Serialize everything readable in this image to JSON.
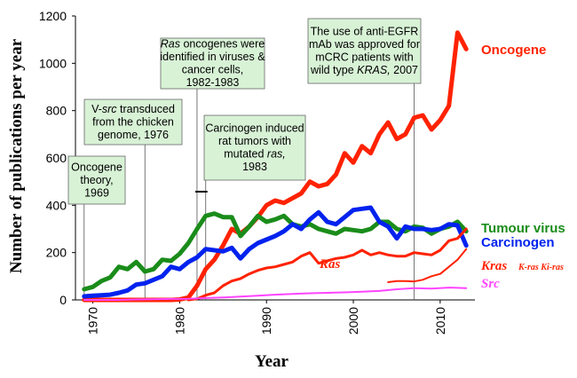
{
  "chart_data": {
    "type": "line",
    "xlabel": "Year",
    "ylabel": "Number of publications per year",
    "xlim": [
      1968,
      2014
    ],
    "ylim": [
      0,
      1200
    ],
    "x_ticks": [
      "1970",
      "1980",
      "1990",
      "2000",
      "2010"
    ],
    "y_ticks": [
      "0",
      "200",
      "400",
      "600",
      "800",
      "1000",
      "1200"
    ],
    "series": [
      {
        "name": "Oncogene",
        "label": "Oncogene",
        "color": "#ff2200",
        "x": [
          1969,
          1970,
          1971,
          1972,
          1973,
          1974,
          1975,
          1976,
          1977,
          1978,
          1979,
          1980,
          1981,
          1982,
          1983,
          1984,
          1985,
          1986,
          1987,
          1988,
          1989,
          1990,
          1991,
          1992,
          1993,
          1994,
          1995,
          1996,
          1997,
          1998,
          1999,
          2000,
          2001,
          2002,
          2003,
          2004,
          2005,
          2006,
          2007,
          2008,
          2009,
          2010,
          2011,
          2012,
          2013
        ],
        "values": [
          0,
          0,
          0,
          0,
          0,
          0,
          0,
          0,
          0,
          0,
          0,
          2,
          10,
          60,
          130,
          170,
          230,
          300,
          280,
          310,
          350,
          400,
          420,
          410,
          430,
          450,
          500,
          480,
          490,
          530,
          620,
          580,
          650,
          620,
          700,
          750,
          680,
          700,
          770,
          780,
          720,
          760,
          820,
          1130,
          1060
        ]
      },
      {
        "name": "Tumour virus",
        "label": "Tumour virus",
        "color": "#1a8c1a",
        "x": [
          1969,
          1970,
          1971,
          1972,
          1973,
          1974,
          1975,
          1976,
          1977,
          1978,
          1979,
          1980,
          1981,
          1982,
          1983,
          1984,
          1985,
          1986,
          1987,
          1988,
          1989,
          1990,
          1991,
          1992,
          1993,
          1994,
          1995,
          1996,
          1997,
          1998,
          1999,
          2000,
          2001,
          2002,
          2003,
          2004,
          2005,
          2006,
          2007,
          2008,
          2009,
          2010,
          2011,
          2012,
          2013
        ],
        "values": [
          45,
          55,
          80,
          95,
          140,
          130,
          160,
          120,
          130,
          170,
          165,
          195,
          240,
          300,
          355,
          365,
          350,
          350,
          270,
          310,
          355,
          330,
          340,
          355,
          320,
          310,
          320,
          300,
          290,
          280,
          300,
          295,
          290,
          300,
          330,
          330,
          300,
          290,
          310,
          305,
          280,
          300,
          310,
          330,
          290
        ]
      },
      {
        "name": "Carcinogen",
        "label": "Carcinogen",
        "color": "#0022ee",
        "x": [
          1969,
          1970,
          1971,
          1972,
          1973,
          1974,
          1975,
          1976,
          1977,
          1978,
          1979,
          1980,
          1981,
          1982,
          1983,
          1984,
          1985,
          1986,
          1987,
          1988,
          1989,
          1990,
          1991,
          1992,
          1993,
          1994,
          1995,
          1996,
          1997,
          1998,
          1999,
          2000,
          2001,
          2002,
          2003,
          2004,
          2005,
          2006,
          2007,
          2008,
          2009,
          2010,
          2011,
          2012,
          2013
        ],
        "values": [
          15,
          18,
          20,
          22,
          30,
          40,
          65,
          70,
          85,
          100,
          140,
          130,
          160,
          180,
          215,
          210,
          205,
          220,
          175,
          215,
          240,
          255,
          270,
          290,
          320,
          300,
          340,
          370,
          330,
          320,
          350,
          380,
          385,
          390,
          330,
          310,
          260,
          310,
          300,
          300,
          295,
          300,
          320,
          315,
          230
        ]
      },
      {
        "name": "Ras",
        "label": "Ras",
        "color": "#ff2200",
        "x": [
          1981,
          1982,
          1983,
          1984,
          1985,
          1986,
          1987,
          1988,
          1989,
          1990,
          1991,
          1992,
          1993,
          1994,
          1995,
          1996,
          1997,
          1998,
          1999,
          2000,
          2001,
          2002,
          2003,
          2004,
          2005,
          2006,
          2007,
          2008,
          2009,
          2010,
          2011,
          2012,
          2013
        ],
        "values": [
          0,
          5,
          20,
          30,
          60,
          80,
          90,
          110,
          125,
          135,
          140,
          150,
          160,
          185,
          200,
          155,
          165,
          175,
          180,
          190,
          210,
          190,
          200,
          190,
          185,
          185,
          200,
          195,
          190,
          210,
          250,
          260,
          300
        ]
      },
      {
        "name": "Kras",
        "label": "Kras",
        "sublabel": "K-ras Ki-ras",
        "color": "#ff2200",
        "x": [
          2004,
          2005,
          2006,
          2007,
          2008,
          2009,
          2010,
          2011,
          2012,
          2013
        ],
        "values": [
          75,
          80,
          80,
          78,
          85,
          100,
          110,
          140,
          170,
          215
        ]
      },
      {
        "name": "Src",
        "label": "Src",
        "color": "#ff44ff",
        "x": [
          1969,
          1971,
          1973,
          1975,
          1977,
          1979,
          1981,
          1983,
          1985,
          1987,
          1989,
          1991,
          1993,
          1995,
          1997,
          1999,
          2001,
          2003,
          2005,
          2007,
          2009,
          2011,
          2013
        ],
        "values": [
          0,
          0,
          0,
          2,
          3,
          4,
          5,
          8,
          10,
          14,
          18,
          22,
          25,
          28,
          30,
          32,
          35,
          38,
          45,
          50,
          48,
          52,
          50
        ]
      }
    ],
    "annotations": [
      {
        "lines": [
          "Oncogene",
          "theory,",
          "1969"
        ],
        "year": 1969
      },
      {
        "lines": [
          "V-src transduced",
          "from the chicken",
          "genome, 1976"
        ],
        "year": 1976
      },
      {
        "lines": [
          "Ras oncogenes were",
          "identified in viruses  &",
          "cancer cells,",
          "1982-1983"
        ],
        "year": 1982
      },
      {
        "lines": [
          "Carcinogen induced",
          "rat tumors with",
          "mutated ras,",
          "1983"
        ],
        "year": 1983
      },
      {
        "lines": [
          "The use of anti-EGFR",
          "mAb was approved for",
          "mCRC patients with",
          "wild type KRAS, 2007"
        ],
        "year": 2007
      }
    ]
  }
}
